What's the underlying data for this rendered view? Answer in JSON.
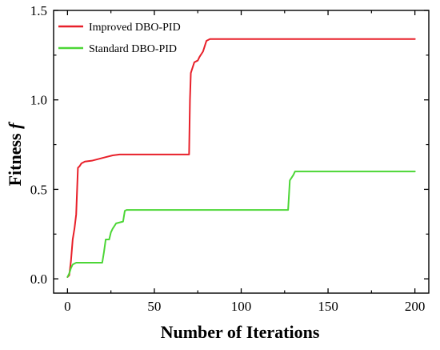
{
  "chart_data": {
    "type": "line",
    "xlabel": "Number of Iterations",
    "ylabel_main": "Fitness ",
    "ylabel_symbol": "f",
    "xlim": [
      -8,
      208
    ],
    "ylim": [
      -0.08,
      1.5
    ],
    "xticks": [
      0,
      50,
      100,
      150,
      200
    ],
    "yticks": [
      0.0,
      0.5,
      1.0,
      1.5
    ],
    "xtick_labels": [
      "0",
      "50",
      "100",
      "150",
      "200"
    ],
    "ytick_labels": [
      "0.0",
      "0.5",
      "1.0",
      "1.5"
    ],
    "grid": false,
    "legend_position": "top-left",
    "series": [
      {
        "name": "Improved DBO-PID",
        "color": "#e8202a",
        "points": [
          [
            0,
            0.01
          ],
          [
            1,
            0.02
          ],
          [
            2,
            0.1
          ],
          [
            3,
            0.22
          ],
          [
            4,
            0.28
          ],
          [
            5,
            0.36
          ],
          [
            6,
            0.62
          ],
          [
            7,
            0.63
          ],
          [
            8,
            0.645
          ],
          [
            10,
            0.655
          ],
          [
            14,
            0.66
          ],
          [
            18,
            0.67
          ],
          [
            22,
            0.68
          ],
          [
            26,
            0.69
          ],
          [
            30,
            0.695
          ],
          [
            50,
            0.695
          ],
          [
            70,
            0.695
          ],
          [
            70.5,
            1.0
          ],
          [
            71,
            1.15
          ],
          [
            72,
            1.18
          ],
          [
            73,
            1.21
          ],
          [
            75,
            1.22
          ],
          [
            76,
            1.24
          ],
          [
            78,
            1.27
          ],
          [
            79,
            1.3
          ],
          [
            80,
            1.33
          ],
          [
            82,
            1.34
          ],
          [
            150,
            1.34
          ],
          [
            200,
            1.34
          ]
        ]
      },
      {
        "name": "Standard DBO-PID",
        "color": "#4cd636",
        "points": [
          [
            0,
            0.01
          ],
          [
            1,
            0.03
          ],
          [
            2,
            0.06
          ],
          [
            3,
            0.08
          ],
          [
            5,
            0.09
          ],
          [
            10,
            0.09
          ],
          [
            15,
            0.09
          ],
          [
            20,
            0.09
          ],
          [
            21,
            0.15
          ],
          [
            22,
            0.22
          ],
          [
            24,
            0.22
          ],
          [
            25,
            0.26
          ],
          [
            26,
            0.28
          ],
          [
            28,
            0.31
          ],
          [
            30,
            0.315
          ],
          [
            32,
            0.32
          ],
          [
            33,
            0.38
          ],
          [
            34,
            0.385
          ],
          [
            60,
            0.385
          ],
          [
            100,
            0.385
          ],
          [
            127,
            0.385
          ],
          [
            128,
            0.55
          ],
          [
            130,
            0.58
          ],
          [
            131,
            0.6
          ],
          [
            150,
            0.6
          ],
          [
            200,
            0.6
          ]
        ]
      }
    ]
  }
}
